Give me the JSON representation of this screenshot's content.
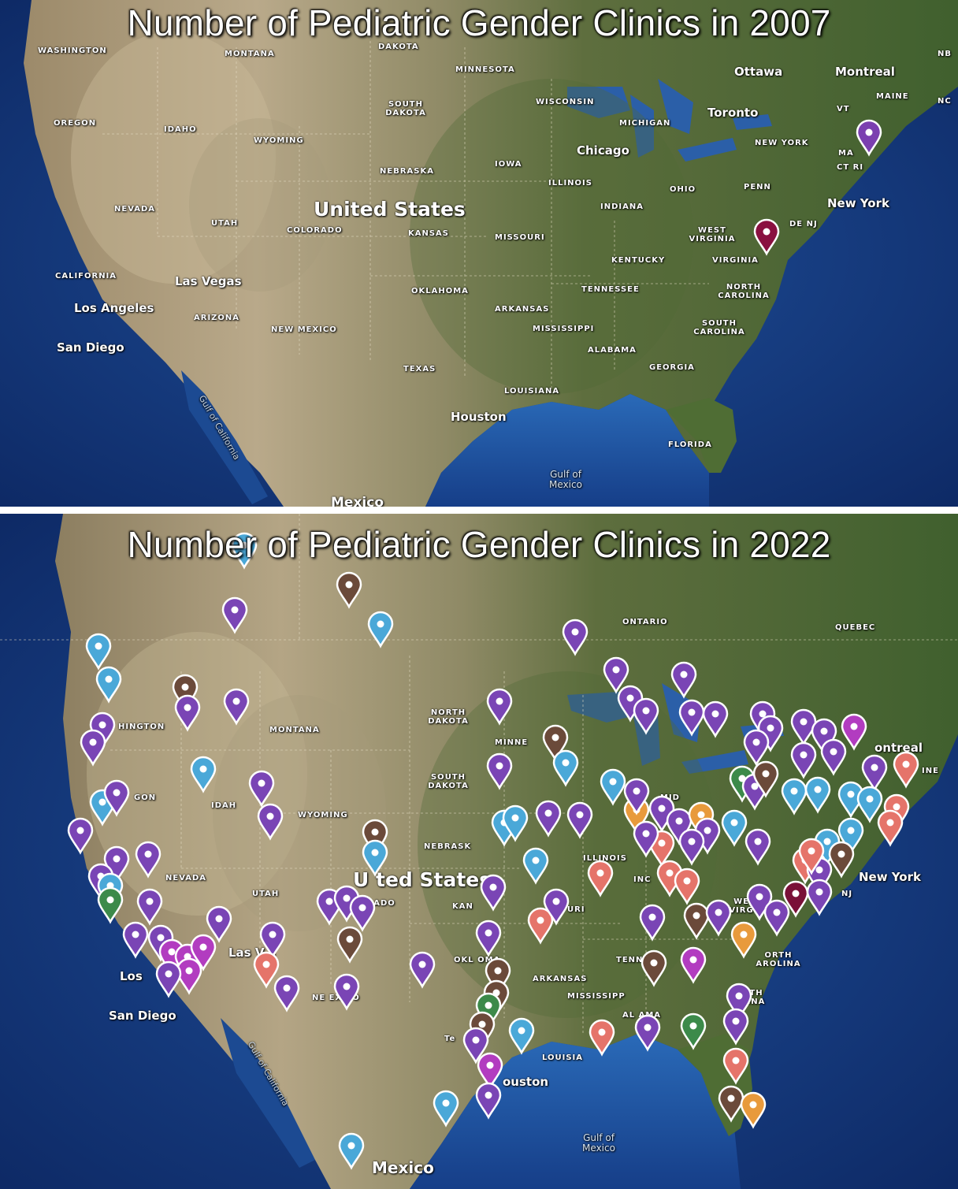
{
  "top_panel": {
    "title": "Number of Pediatric Gender Clinics in 2007",
    "labels": [
      "WASHINGTON",
      "MONTANA",
      "DAKOTA",
      "MINNESOTA",
      "Ottawa",
      "Montreal",
      "NB",
      "OREGON",
      "IDAHO",
      "SOUTH DAKOTA",
      "WISCONSIN",
      "MICHIGAN",
      "Toronto",
      "MAINE",
      "VT",
      "NC",
      "WYOMING",
      "NEW YORK",
      "MA",
      "CT RI",
      "NEBRASKA",
      "IOWA",
      "Chicago",
      "ILLINOIS",
      "OHIO",
      "PENN",
      "NEVADA",
      "UTAH",
      "United States",
      "COLORADO",
      "KANSAS",
      "MISSOURI",
      "INDIANA",
      "WEST VIRGINIA",
      "DE NJ",
      "New York",
      "KENTUCKY",
      "VIRGINIA",
      "CALIFORNIA",
      "Las Vegas",
      "OKLAHOMA",
      "TENNESSEE",
      "NORTH CAROLINA",
      "Los Angeles",
      "ARIZONA",
      "ARKANSAS",
      "NEW MEXICO",
      "MISSISSIPPI",
      "SOUTH CAROLINA",
      "San Diego",
      "ALABAMA",
      "GEORGIA",
      "TEXAS",
      "LOUISIANA",
      "Houston",
      "Gulf of California",
      "FLORIDA",
      "Gulf of Mexico",
      "Mexico"
    ],
    "clinic_pin_colors": [
      "#7b3fb0",
      "#8a1040"
    ]
  },
  "bottom_panel": {
    "title": "Number of Pediatric Gender Clinics in 2022",
    "labels": [
      "ONTARIO",
      "QUEBEC",
      "NORTH DAKOTA",
      "HINGTON",
      "MONTANA",
      "MINNE",
      "ontreal",
      "INE",
      "GON",
      "IDAH",
      "WYOMING",
      "SOUTH DAKOTA",
      "NEBRASK",
      "ILLINOIS",
      "MID",
      "NEVADA",
      "UTAH",
      "U ted States",
      "KAN",
      "ORADO",
      "URI",
      "INC",
      "New York",
      "NJ",
      "WE VIRG",
      "Los",
      "San Diego",
      "Las V s",
      "NE EXICO",
      "OKL OMA",
      "TENN SS",
      "ORTH AROLINA",
      "ARKANSAS",
      "MISSISSIPP",
      "AL AMA",
      "TH INA",
      "LOUISIA",
      "Te",
      "ouston",
      "Gulf of California",
      "Gulf of Mexico",
      "Mexico"
    ],
    "pin_legend_colors": {
      "purple": "#7a45b5",
      "blue": "#4aa8d8",
      "brown": "#6b4a3a",
      "salmon": "#e5746a",
      "orange": "#e89a3c",
      "magenta": "#b23cc0",
      "green": "#3c8a4a",
      "maroon": "#7a1038"
    }
  }
}
